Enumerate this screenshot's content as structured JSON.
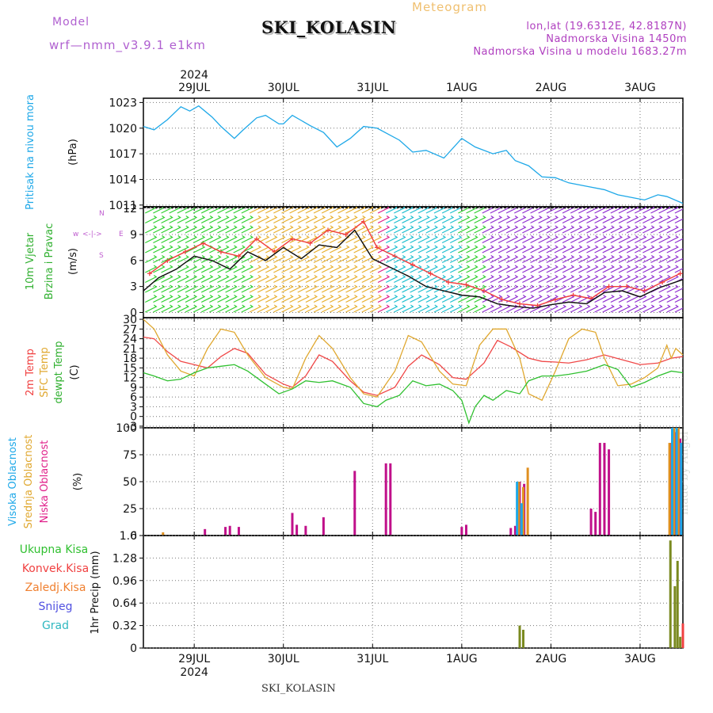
{
  "header": {
    "title": "SKI_KOLASIN",
    "meteogram_label": "Meteogram",
    "model_label": "Model",
    "model_value": "wrf—nmm_v3.9.1  e1km",
    "lonlat": "lon,lat (19.6312E, 42.8187N)",
    "altitude": "Nadmorska Visina 1450m",
    "altitude_model": "Nadmorska Visina u modelu 1683.27m"
  },
  "footer": {
    "station": "SKI_KOLASIN"
  },
  "watermark": "made by Angel",
  "time_axis": {
    "year_label": "2024",
    "day_labels": [
      "29JUL",
      "30JUL",
      "31JUL",
      "1AUG",
      "2AUG",
      "3AUG"
    ],
    "range_days": [
      -0.57,
      5.48
    ]
  },
  "chart_data": [
    {
      "type": "line",
      "panel": "pressure",
      "ylabel_lines": [
        "Pritisak na nivou mora",
        "(hPa)"
      ],
      "ylim": [
        1010.8,
        1023.5
      ],
      "yticks": [
        "1023",
        "1020",
        "1017",
        "1014",
        "1011"
      ],
      "grid": true,
      "series": [
        {
          "color": "#1ea8e8",
          "x": [
            -0.57,
            -0.45,
            -0.3,
            -0.15,
            -0.05,
            0.05,
            0.2,
            0.3,
            0.45,
            0.55,
            0.7,
            0.8,
            0.95,
            1.0,
            1.1,
            1.3,
            1.45,
            1.6,
            1.75,
            1.9,
            2.05,
            2.3,
            2.45,
            2.6,
            2.8,
            3.0,
            3.15,
            3.35,
            3.5,
            3.6,
            3.75,
            3.9,
            4.05,
            4.2,
            4.4,
            4.6,
            4.75,
            4.95,
            5.05,
            5.2,
            5.3,
            5.48
          ],
          "values": [
            1020.2,
            1019.8,
            1021.0,
            1022.5,
            1022.0,
            1022.6,
            1021.3,
            1020.2,
            1018.8,
            1019.8,
            1021.2,
            1021.5,
            1020.5,
            1020.5,
            1021.5,
            1020.3,
            1019.5,
            1017.8,
            1018.8,
            1020.2,
            1020.0,
            1018.6,
            1017.2,
            1017.4,
            1016.5,
            1018.8,
            1017.8,
            1017.0,
            1017.4,
            1016.2,
            1015.6,
            1014.3,
            1014.2,
            1013.6,
            1013.2,
            1012.8,
            1012.2,
            1011.8,
            1011.6,
            1012.2,
            1012.0,
            1011.2
          ]
        }
      ]
    },
    {
      "type": "line",
      "panel": "wind",
      "ylabel_lines": [
        "10m Vjetar",
        "Brzina i Pravac",
        "(m/s)"
      ],
      "direction_key": [
        "w",
        "<-|->",
        "E",
        "N",
        "S"
      ],
      "ylim": [
        -0.6,
        12.2
      ],
      "yticks": [
        "12",
        "9",
        "6",
        "3",
        "0"
      ],
      "grid": true,
      "series": [
        {
          "color": "#111111",
          "x": [
            -0.57,
            -0.4,
            -0.2,
            0.0,
            0.2,
            0.4,
            0.6,
            0.8,
            1.0,
            1.2,
            1.4,
            1.6,
            1.8,
            2.0,
            2.2,
            2.4,
            2.6,
            2.8,
            3.0,
            3.2,
            3.4,
            3.6,
            3.8,
            4.0,
            4.2,
            4.4,
            4.6,
            4.8,
            5.0,
            5.2,
            5.48
          ],
          "values": [
            2.5,
            4.0,
            5.0,
            6.5,
            6.0,
            5.0,
            7.0,
            6.0,
            7.5,
            6.2,
            7.8,
            7.5,
            9.5,
            6.2,
            5.2,
            4.2,
            3.0,
            2.5,
            2.0,
            1.8,
            1.0,
            0.7,
            0.5,
            0.9,
            1.2,
            1.0,
            2.3,
            2.5,
            1.8,
            2.8,
            3.8
          ]
        },
        {
          "color": "#f04040",
          "marker": "plus",
          "x": [
            -0.5,
            -0.3,
            -0.1,
            0.1,
            0.3,
            0.5,
            0.7,
            0.9,
            1.1,
            1.3,
            1.5,
            1.7,
            1.9,
            2.05,
            2.25,
            2.45,
            2.65,
            2.85,
            3.05,
            3.25,
            3.45,
            3.65,
            3.85,
            4.05,
            4.25,
            4.45,
            4.65,
            4.85,
            5.05,
            5.25,
            5.45
          ],
          "values": [
            4.5,
            6.0,
            7.0,
            8.0,
            7.0,
            6.5,
            8.5,
            7.0,
            8.5,
            8.0,
            9.5,
            9.0,
            10.5,
            7.5,
            6.5,
            5.5,
            4.5,
            3.5,
            3.2,
            2.5,
            1.5,
            1.0,
            0.8,
            1.5,
            2.0,
            1.6,
            3.0,
            3.0,
            2.5,
            3.5,
            4.5
          ]
        }
      ]
    },
    {
      "type": "line",
      "panel": "temperature",
      "ylabel_lines": [
        "2m Temp",
        "SFC Temp",
        "dewpt Temp",
        "(C)"
      ],
      "ylim": [
        -3.5,
        30.5
      ],
      "yticks": [
        "30",
        "27",
        "24",
        "21",
        "18",
        "15",
        "12",
        "9",
        "6",
        "3",
        "0",
        "-3"
      ],
      "grid": true,
      "series": [
        {
          "name": "2m Temp",
          "color": "#f04848",
          "x": [
            -0.57,
            -0.45,
            -0.3,
            -0.15,
            0.0,
            0.15,
            0.3,
            0.45,
            0.6,
            0.8,
            1.0,
            1.1,
            1.25,
            1.4,
            1.55,
            1.75,
            1.9,
            2.05,
            2.25,
            2.4,
            2.55,
            2.75,
            2.9,
            3.05,
            3.25,
            3.4,
            3.55,
            3.75,
            3.9,
            4.05,
            4.2,
            4.4,
            4.6,
            4.8,
            5.0,
            5.2,
            5.35,
            5.48
          ],
          "values": [
            24.5,
            24.0,
            20.0,
            17.0,
            16.0,
            15.0,
            18.5,
            21.0,
            19.5,
            13.0,
            10.0,
            9.0,
            12.5,
            19.0,
            17.0,
            11.0,
            7.5,
            6.5,
            9.0,
            15.5,
            19.0,
            16.0,
            12.0,
            11.5,
            16.5,
            23.5,
            21.5,
            18.0,
            17.0,
            16.8,
            16.5,
            17.5,
            19.0,
            17.5,
            16.0,
            16.5,
            18.0,
            18.5
          ]
        },
        {
          "name": "SFC Temp",
          "color": "#e0a830",
          "x": [
            -0.57,
            -0.45,
            -0.3,
            -0.15,
            0.0,
            0.15,
            0.3,
            0.45,
            0.6,
            0.8,
            1.0,
            1.1,
            1.25,
            1.4,
            1.55,
            1.75,
            1.9,
            2.05,
            2.25,
            2.4,
            2.55,
            2.75,
            2.9,
            3.05,
            3.2,
            3.35,
            3.5,
            3.65,
            3.75,
            3.9,
            4.05,
            4.2,
            4.35,
            4.5,
            4.6,
            4.75,
            4.9,
            5.05,
            5.2,
            5.3,
            5.35,
            5.4,
            5.48
          ],
          "values": [
            30.0,
            27.0,
            19.0,
            14.0,
            12.5,
            21.0,
            27.0,
            26.0,
            19.0,
            12.0,
            9.0,
            8.5,
            18.0,
            25.0,
            21.0,
            12.0,
            7.0,
            6.0,
            14.0,
            25.0,
            23.0,
            14.0,
            10.0,
            9.5,
            22.0,
            27.0,
            27.0,
            18.0,
            7.0,
            5.0,
            14.0,
            24.0,
            27.0,
            26.0,
            18.0,
            9.5,
            10.0,
            12.0,
            15.0,
            22.0,
            18.0,
            21.0,
            19.0
          ]
        },
        {
          "name": "dewpt Temp",
          "color": "#30c030",
          "x": [
            -0.57,
            -0.45,
            -0.3,
            -0.15,
            0.0,
            0.15,
            0.3,
            0.45,
            0.6,
            0.8,
            0.95,
            1.1,
            1.25,
            1.4,
            1.55,
            1.75,
            1.9,
            2.05,
            2.15,
            2.3,
            2.45,
            2.6,
            2.75,
            2.9,
            3.0,
            3.08,
            3.15,
            3.25,
            3.35,
            3.5,
            3.65,
            3.75,
            3.9,
            4.05,
            4.2,
            4.4,
            4.6,
            4.75,
            4.9,
            5.05,
            5.2,
            5.35,
            5.48
          ],
          "values": [
            13.5,
            12.5,
            11.0,
            11.5,
            13.5,
            15.0,
            15.5,
            16.0,
            14.0,
            10.0,
            7.0,
            8.5,
            11.0,
            10.5,
            11.0,
            9.0,
            4.0,
            3.0,
            5.0,
            6.5,
            11.0,
            9.5,
            10.0,
            8.0,
            5.0,
            -2.0,
            3.0,
            6.5,
            5.0,
            8.0,
            7.0,
            11.0,
            12.5,
            12.5,
            13.0,
            14.0,
            16.0,
            14.5,
            9.0,
            10.5,
            12.5,
            14.0,
            13.5
          ]
        }
      ]
    },
    {
      "type": "bar",
      "panel": "cloud",
      "ylabel_lines": [
        "Visoka Oblacnost",
        "Srednja Oblacnost",
        "Niska Oblacnost",
        "(%)"
      ],
      "ylim": [
        0,
        100
      ],
      "yticks": [
        "100",
        "75",
        "50",
        "25",
        "0"
      ],
      "grid": true,
      "series": [
        {
          "name": "Niska Oblacnost",
          "color": "#c0108a",
          "x": [
            0.12,
            0.35,
            0.4,
            0.5,
            1.1,
            1.15,
            1.25,
            1.45,
            1.8,
            2.15,
            2.2,
            3.0,
            3.05,
            3.55,
            3.6,
            3.65,
            3.7,
            4.45,
            4.5,
            4.55,
            4.6,
            4.65,
            5.35,
            5.4,
            5.45
          ],
          "values": [
            6,
            8,
            9,
            8,
            21,
            10,
            9,
            17,
            60,
            67,
            67,
            8,
            10,
            7,
            9,
            50,
            48,
            25,
            22,
            86,
            86,
            80,
            86,
            96,
            90
          ]
        },
        {
          "name": "Srednja Oblacnost",
          "color": "#e09020",
          "x": [
            -0.35,
            3.64,
            3.69,
            3.74,
            5.33,
            5.38,
            5.43
          ],
          "values": [
            3,
            50,
            45,
            63,
            86,
            100,
            100
          ]
        },
        {
          "name": "Visoka Oblacnost",
          "color": "#1ea8e8",
          "x": [
            3.62,
            3.67,
            5.36,
            5.41,
            5.46
          ],
          "values": [
            50,
            30,
            100,
            100,
            86
          ]
        }
      ]
    },
    {
      "type": "bar",
      "panel": "precip",
      "ylabel": "1hr Precip (mm)",
      "legend": [
        "Ukupna Kisa",
        "Konvek.Kisa",
        "Zaledj.Kisa",
        "Snijeg",
        "Grad"
      ],
      "legend_colors": [
        "#30c030",
        "#f04040",
        "#f08030",
        "#5050e0",
        "#30b8c0"
      ],
      "ylim": [
        0,
        1.6
      ],
      "yticks": [
        "1.6",
        "1.28",
        "0.96",
        "0.64",
        "0.32",
        "0"
      ],
      "grid": true,
      "series": [
        {
          "name": "Ukupna Kisa",
          "color": "#7a8a20",
          "x": [
            3.65,
            3.69,
            5.34,
            5.39,
            5.42,
            5.45
          ],
          "values": [
            0.32,
            0.26,
            1.53,
            0.88,
            1.24,
            0.16
          ]
        },
        {
          "name": "Konvek.Kisa",
          "color": "#f04040",
          "x": [
            5.48
          ],
          "values": [
            0.35
          ]
        }
      ]
    }
  ]
}
